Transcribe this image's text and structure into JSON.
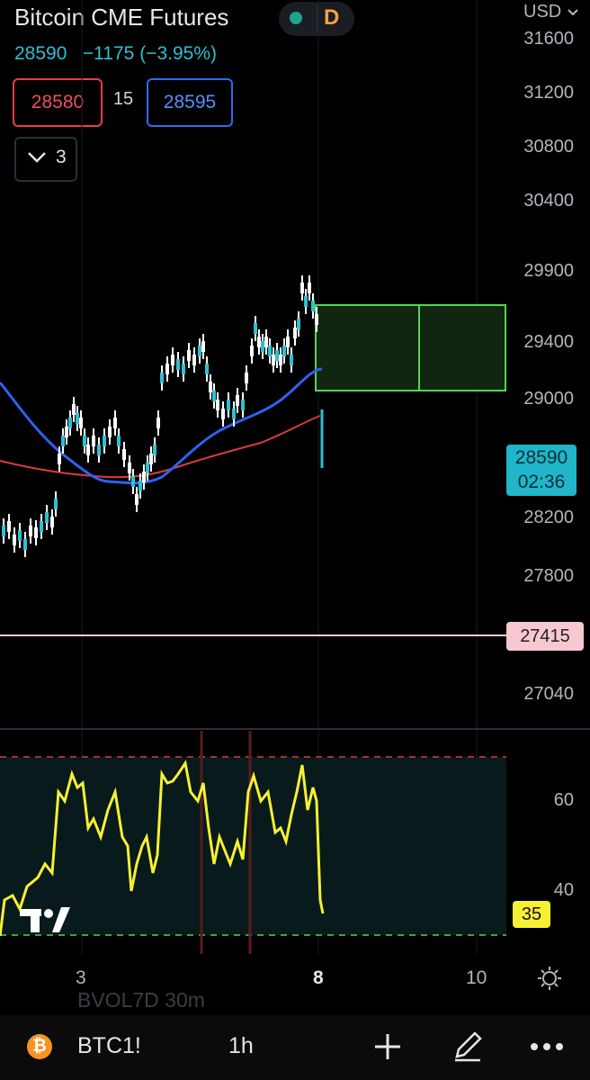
{
  "header": {
    "title": "Bitcoin CME Futures",
    "mode_letter": "D",
    "currency": "USD",
    "last_price": "28590",
    "change": "−1175",
    "change_pct": "(−3.95%)"
  },
  "order_panel": {
    "sell_price": "28580",
    "spread": "15",
    "buy_price": "28595"
  },
  "indicators_toggle": {
    "count": "3"
  },
  "price_axis": {
    "labels": [
      "31600",
      "31200",
      "30800",
      "30400",
      "29900",
      "29400",
      "29000",
      "28200",
      "27800",
      "27040"
    ],
    "current_price": "28590",
    "countdown": "02:36",
    "level_price": "27415"
  },
  "rsi_axis": {
    "labels": [
      "60",
      "40"
    ],
    "current_value": "35"
  },
  "time_axis": {
    "labels": [
      "3",
      "8",
      "10"
    ]
  },
  "bottom_bar": {
    "symbol": "BTC1!",
    "interval": "1h",
    "faded_study": "BVOL7D    30m"
  },
  "colors": {
    "accent": "#2fbfd1",
    "sell": "#f03b45",
    "buy": "#2f6cf0",
    "ma_blue": "#2d62f0",
    "ma_red": "#e03a3a",
    "rsi": "#f7f032",
    "range_box": "#54d45a",
    "level_line": "#f8c8d0"
  },
  "icons": [
    "bitcoin-icon",
    "plus-icon",
    "pen-icon",
    "more-icon",
    "settings-icon",
    "chevron-down-icon"
  ]
}
